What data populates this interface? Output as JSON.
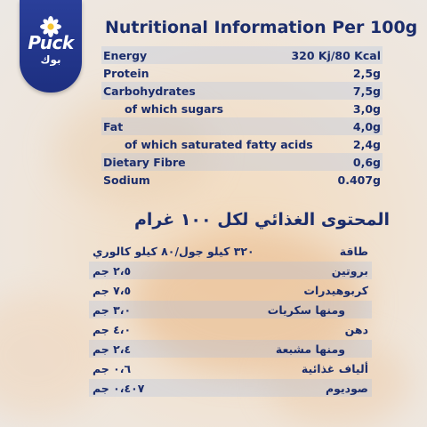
{
  "brand": {
    "name_en": "Puck",
    "name_ar": "بوك"
  },
  "english": {
    "title": "Nutritional Information Per 100g",
    "rows": [
      {
        "label": "Energy",
        "value": "320 Kj/80 Kcal"
      },
      {
        "label": "Protein",
        "value": "2,5g"
      },
      {
        "label": "Carbohydrates",
        "value": "7,5g"
      },
      {
        "label": "of which sugars",
        "value": "3,0g"
      },
      {
        "label": "Fat",
        "value": "4,0g"
      },
      {
        "label": "of which saturated fatty acids",
        "value": "2,4g"
      },
      {
        "label": "Dietary Fibre",
        "value": "0,6g"
      },
      {
        "label": "Sodium",
        "value": "0.407g"
      }
    ]
  },
  "arabic": {
    "title": "المحتوى الغذائي لكل ١٠٠ غرام",
    "rows": [
      {
        "label": "طاقة",
        "value": "٣٢٠ كيلو جول/٨٠ كيلو كالوري"
      },
      {
        "label": "بروتين",
        "value": "٢،٥ جم"
      },
      {
        "label": "كربوهيدرات",
        "value": "٧،٥ جم"
      },
      {
        "label": "ومنها سكريات",
        "value": "٣،٠ جم"
      },
      {
        "label": "دهن",
        "value": "٤،٠ جم"
      },
      {
        "label": "ومنها مشبعة",
        "value": "٢،٤ جم"
      },
      {
        "label": "ألياف غذائية",
        "value": "٠،٦ جم"
      },
      {
        "label": "صوديوم",
        "value": "٠،٤٠٧ جم"
      }
    ]
  },
  "colors": {
    "text": "#1b2d6b",
    "logo": "#1d2f80",
    "row_shade": "#c3cfe6"
  },
  "icons": {
    "logo": "daisy-flower-icon"
  }
}
